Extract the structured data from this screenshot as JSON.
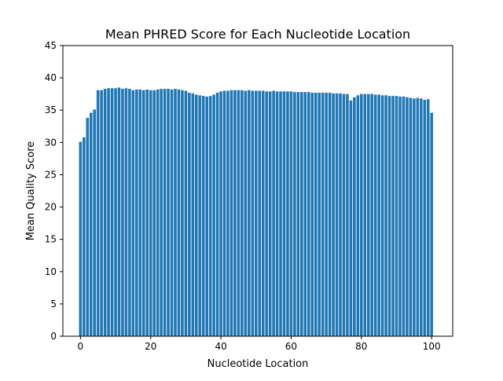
{
  "chart_data": {
    "type": "bar",
    "title": "Mean PHRED Score for Each Nucleotide Location",
    "xlabel": "Nucleotide Location",
    "ylabel": "Mean Quality Score",
    "xlim": [
      -5,
      106
    ],
    "ylim": [
      0,
      45
    ],
    "xticks": [
      0,
      20,
      40,
      60,
      80,
      100
    ],
    "yticks": [
      0,
      5,
      10,
      15,
      20,
      25,
      30,
      35,
      40,
      45
    ],
    "grid": false,
    "bar_color": "#1f77b4",
    "x": [
      0,
      1,
      2,
      3,
      4,
      5,
      6,
      7,
      8,
      9,
      10,
      11,
      12,
      13,
      14,
      15,
      16,
      17,
      18,
      19,
      20,
      21,
      22,
      23,
      24,
      25,
      26,
      27,
      28,
      29,
      30,
      31,
      32,
      33,
      34,
      35,
      36,
      37,
      38,
      39,
      40,
      41,
      42,
      43,
      44,
      45,
      46,
      47,
      48,
      49,
      50,
      51,
      52,
      53,
      54,
      55,
      56,
      57,
      58,
      59,
      60,
      61,
      62,
      63,
      64,
      65,
      66,
      67,
      68,
      69,
      70,
      71,
      72,
      73,
      74,
      75,
      76,
      77,
      78,
      79,
      80,
      81,
      82,
      83,
      84,
      85,
      86,
      87,
      88,
      89,
      90,
      91,
      92,
      93,
      94,
      95,
      96,
      97,
      98,
      99,
      100
    ],
    "values": [
      30.1,
      30.8,
      33.8,
      34.6,
      35.1,
      38.1,
      38.1,
      38.3,
      38.4,
      38.4,
      38.4,
      38.5,
      38.3,
      38.4,
      38.3,
      38.1,
      38.2,
      38.2,
      38.1,
      38.2,
      38.1,
      38.1,
      38.2,
      38.3,
      38.3,
      38.3,
      38.2,
      38.3,
      38.2,
      38.1,
      38.0,
      37.7,
      37.6,
      37.4,
      37.3,
      37.2,
      37.1,
      37.2,
      37.4,
      37.7,
      37.9,
      38.0,
      38.0,
      38.1,
      38.1,
      38.1,
      38.1,
      38.0,
      38.1,
      38.0,
      38.0,
      38.0,
      38.0,
      37.9,
      37.9,
      38.0,
      37.9,
      37.9,
      37.9,
      37.9,
      37.9,
      37.8,
      37.8,
      37.8,
      37.8,
      37.8,
      37.7,
      37.7,
      37.7,
      37.7,
      37.7,
      37.7,
      37.6,
      37.6,
      37.6,
      37.5,
      37.5,
      36.5,
      37.0,
      37.3,
      37.5,
      37.5,
      37.5,
      37.5,
      37.4,
      37.4,
      37.3,
      37.3,
      37.2,
      37.2,
      37.2,
      37.1,
      37.1,
      37.0,
      36.9,
      36.8,
      36.9,
      36.8,
      36.6,
      36.7,
      34.6
    ]
  }
}
